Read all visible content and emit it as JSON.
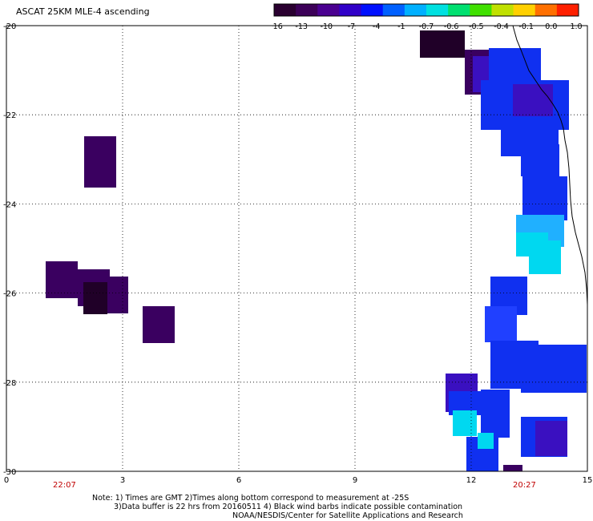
{
  "title": "ASCAT 25KM MLE-4 ascending",
  "colorbar": {
    "tick_labels": [
      "-16",
      "-13",
      "-10",
      "-7",
      "-4",
      "-1",
      "-0.7",
      "-0.6",
      "-0.5",
      "-0.4",
      "-0.1",
      "0.0",
      "1.0"
    ],
    "colors": [
      "#2a0030",
      "#3c0058",
      "#4a0090",
      "#3000c8",
      "#0010ff",
      "#0060ff",
      "#00b0ff",
      "#00e0e0",
      "#00e070",
      "#40e000",
      "#c0e000",
      "#ffd000",
      "#ff7000",
      "#ff2000"
    ]
  },
  "axes": {
    "y_ticks": [
      "-20",
      "-22",
      "-24",
      "-26",
      "-28",
      "-30"
    ],
    "x_ticks": [
      "0",
      "3",
      "6",
      "9",
      "12",
      "15"
    ]
  },
  "time_labels": [
    "22:07",
    "20:27"
  ],
  "notes": [
    "Note: 1) Times are GMT 2)Times along bottom correspond to measurement at -25S",
    "3)Data buffer is 22 hrs from 20160511 4) Black wind barbs indicate possible contamination",
    "NOAA/NESDIS/Center for Satellite Applications and Research"
  ],
  "colors": {
    "deep_purple": "#3a0060",
    "dark": "#200028",
    "blue": "#1030f0",
    "blue2": "#2040ff",
    "indigo": "#3a10c0",
    "cyan": "#00d8f0",
    "lightblue": "#20b0ff",
    "grid": "#000000",
    "coast": "#000000"
  }
}
